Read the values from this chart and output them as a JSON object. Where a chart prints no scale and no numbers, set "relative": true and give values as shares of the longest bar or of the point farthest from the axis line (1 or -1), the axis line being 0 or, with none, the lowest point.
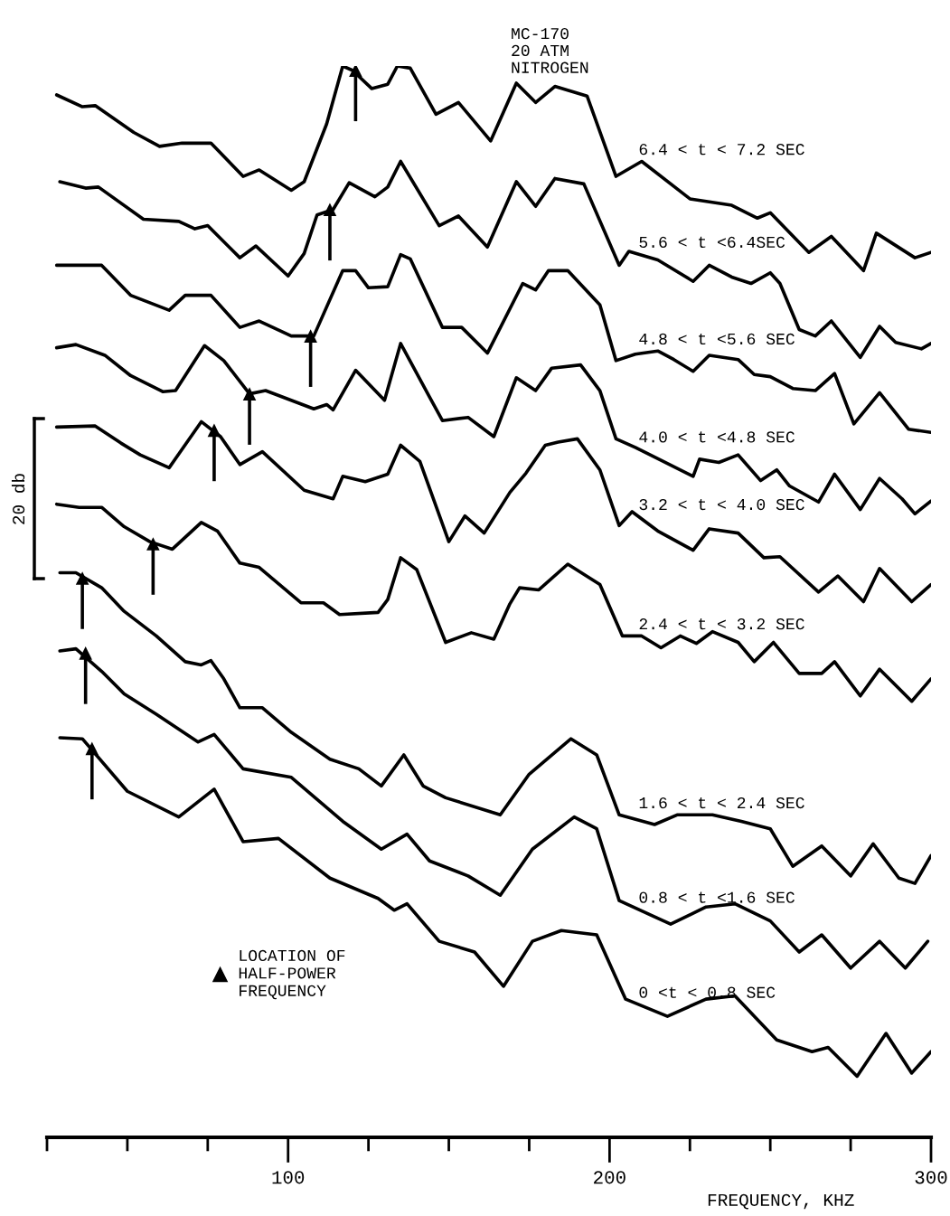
{
  "chart_data": {
    "type": "line",
    "title": "MC-170\n20 ATM\nNITROGEN",
    "xlabel": "FREQUENCY, KHZ",
    "relative": true,
    "tick_labels": "x",
    "legend": "bottom left",
    "annotations": [
      "20 db"
    ],
    "xlim": [
      25,
      300
    ],
    "xticks": [
      {
        "value": 25,
        "label": null
      },
      {
        "value": 50,
        "label": null
      },
      {
        "value": 75,
        "label": null
      },
      100,
      {
        "value": 125,
        "label": null
      },
      {
        "value": 150,
        "label": null
      },
      {
        "value": 175,
        "label": null
      },
      200,
      {
        "value": 225,
        "label": null
      },
      {
        "value": 250,
        "label": null
      },
      {
        "value": 275,
        "label": null
      },
      300
    ],
    "series": [
      {
        "name": "6.4 < t < 7.2 SEC",
        "color": "#000000",
        "x": [
          28,
          36,
          40,
          52,
          60,
          67,
          76,
          86,
          91,
          101,
          105,
          112,
          117,
          120,
          126,
          131,
          134,
          138,
          146,
          153,
          163,
          171,
          177,
          183,
          193,
          202,
          210,
          225,
          238,
          246,
          250,
          262,
          269,
          279,
          283,
          295,
          300
        ],
        "values": [
          0.973,
          0.962,
          0.963,
          0.938,
          0.925,
          0.928,
          0.928,
          0.897,
          0.903,
          0.884,
          0.892,
          0.946,
          1.0,
          0.996,
          0.979,
          0.983,
          1.0,
          0.998,
          0.955,
          0.966,
          0.93,
          0.984,
          0.966,
          0.981,
          0.972,
          0.897,
          0.911,
          0.876,
          0.87,
          0.858,
          0.863,
          0.826,
          0.841,
          0.809,
          0.844,
          0.821,
          0.826
        ]
      },
      {
        "name": "5.6 < t <6.4SEC",
        "color": "#000000",
        "x": [
          29,
          37,
          41,
          55,
          66,
          71,
          75,
          85,
          90,
          100,
          105,
          109,
          114,
          119,
          127,
          131,
          135,
          147,
          153,
          162,
          171,
          177,
          183,
          192,
          203,
          206,
          215,
          226,
          231,
          238,
          244,
          250,
          253,
          259,
          264,
          269,
          278,
          284,
          289,
          297,
          300
        ],
        "values": [
          0.892,
          0.886,
          0.887,
          0.857,
          0.855,
          0.848,
          0.851,
          0.821,
          0.832,
          0.804,
          0.825,
          0.861,
          0.866,
          0.891,
          0.878,
          0.887,
          0.911,
          0.851,
          0.86,
          0.831,
          0.892,
          0.869,
          0.895,
          0.89,
          0.814,
          0.827,
          0.819,
          0.799,
          0.814,
          0.803,
          0.797,
          0.807,
          0.797,
          0.754,
          0.748,
          0.762,
          0.728,
          0.757,
          0.742,
          0.736,
          0.741
        ]
      },
      {
        "name": "4.8 < t <5.6 SEC",
        "color": "#000000",
        "x": [
          28,
          42,
          51,
          63,
          68,
          76,
          85,
          91,
          101,
          108,
          117,
          121,
          125,
          131,
          135,
          138,
          148,
          154,
          162,
          173,
          177,
          181,
          187,
          197,
          202,
          208,
          215,
          220,
          226,
          231,
          240,
          245,
          250,
          257,
          264,
          270,
          276,
          284,
          293,
          300
        ],
        "values": [
          0.814,
          0.814,
          0.786,
          0.772,
          0.786,
          0.786,
          0.756,
          0.762,
          0.748,
          0.748,
          0.809,
          0.809,
          0.793,
          0.794,
          0.824,
          0.82,
          0.756,
          0.756,
          0.732,
          0.797,
          0.791,
          0.809,
          0.809,
          0.777,
          0.725,
          0.731,
          0.734,
          0.726,
          0.715,
          0.73,
          0.726,
          0.712,
          0.71,
          0.699,
          0.697,
          0.713,
          0.666,
          0.695,
          0.661,
          0.658
        ]
      },
      {
        "name": "4.0 < t <4.8 SEC",
        "color": "#000000",
        "x": [
          28,
          34,
          43,
          51,
          61,
          65,
          74,
          80,
          88,
          93,
          108,
          112,
          114,
          121,
          130,
          135,
          144,
          148,
          156,
          164,
          171,
          177,
          182,
          191,
          197,
          202,
          208,
          226,
          228,
          234,
          240,
          247,
          252,
          256,
          265,
          270,
          278,
          284,
          291,
          295,
          300
        ],
        "values": [
          0.737,
          0.74,
          0.73,
          0.711,
          0.696,
          0.697,
          0.739,
          0.725,
          0.694,
          0.697,
          0.68,
          0.684,
          0.679,
          0.716,
          0.688,
          0.741,
          0.691,
          0.669,
          0.672,
          0.654,
          0.709,
          0.697,
          0.718,
          0.721,
          0.697,
          0.652,
          0.644,
          0.617,
          0.633,
          0.63,
          0.637,
          0.613,
          0.623,
          0.608,
          0.593,
          0.619,
          0.586,
          0.615,
          0.596,
          0.582,
          0.594
        ]
      },
      {
        "name": "3.2 < t < 4.0 SEC",
        "color": "#000000",
        "x": [
          28,
          40,
          48,
          54,
          63,
          73,
          79,
          85,
          92,
          105,
          114,
          117,
          124,
          131,
          135,
          141,
          150,
          155,
          161,
          169,
          174,
          180,
          184,
          190,
          197,
          203,
          207,
          215,
          226,
          231,
          240,
          248,
          253,
          265,
          271,
          279,
          284,
          294,
          300
        ],
        "values": [
          0.663,
          0.664,
          0.648,
          0.637,
          0.625,
          0.668,
          0.654,
          0.628,
          0.64,
          0.604,
          0.596,
          0.617,
          0.612,
          0.619,
          0.646,
          0.631,
          0.556,
          0.58,
          0.564,
          0.602,
          0.62,
          0.646,
          0.649,
          0.652,
          0.623,
          0.571,
          0.584,
          0.566,
          0.548,
          0.568,
          0.564,
          0.541,
          0.542,
          0.509,
          0.524,
          0.5,
          0.531,
          0.5,
          0.516
        ]
      },
      {
        "name": "2.4 < t < 3.2 SEC",
        "color": "#000000",
        "x": [
          28,
          35,
          42,
          49,
          57,
          64,
          73,
          78,
          85,
          91,
          104,
          111,
          116,
          128,
          131,
          135,
          140,
          149,
          157,
          164,
          169,
          172,
          178,
          187,
          197,
          204,
          210,
          216,
          222,
          227,
          232,
          240,
          245,
          251,
          259,
          266,
          270,
          278,
          284,
          294,
          300
        ],
        "values": [
          0.591,
          0.588,
          0.588,
          0.57,
          0.556,
          0.549,
          0.574,
          0.566,
          0.536,
          0.532,
          0.499,
          0.499,
          0.488,
          0.49,
          0.502,
          0.541,
          0.53,
          0.462,
          0.471,
          0.465,
          0.498,
          0.513,
          0.511,
          0.535,
          0.516,
          0.468,
          0.468,
          0.457,
          0.468,
          0.461,
          0.472,
          0.462,
          0.444,
          0.462,
          0.433,
          0.433,
          0.444,
          0.412,
          0.437,
          0.407,
          0.428
        ]
      },
      {
        "name": "1.6 < t < 2.4 SEC",
        "color": "#000000",
        "x": [
          29,
          34,
          42,
          49,
          59,
          68,
          73,
          76,
          80,
          85,
          92,
          101,
          113,
          122,
          129,
          136,
          142,
          149,
          166,
          175,
          188,
          196,
          203,
          214,
          221,
          232,
          241,
          250,
          257,
          266,
          275,
          282,
          290,
          295,
          300
        ],
        "values": [
          0.527,
          0.527,
          0.513,
          0.491,
          0.468,
          0.444,
          0.441,
          0.445,
          0.428,
          0.401,
          0.401,
          0.378,
          0.353,
          0.344,
          0.328,
          0.357,
          0.328,
          0.317,
          0.301,
          0.339,
          0.372,
          0.357,
          0.301,
          0.292,
          0.301,
          0.301,
          0.295,
          0.288,
          0.253,
          0.272,
          0.244,
          0.274,
          0.242,
          0.237,
          0.263
        ]
      },
      {
        "name": "0.8 < t <1.6 SEC",
        "color": "#000000",
        "x": [
          29,
          34,
          42,
          49,
          59,
          72,
          77,
          86,
          101,
          117,
          129,
          137,
          144,
          156,
          166,
          176,
          189,
          196,
          203,
          219,
          230,
          239,
          250,
          259,
          266,
          275,
          284,
          292,
          299
        ],
        "values": [
          0.454,
          0.456,
          0.435,
          0.414,
          0.395,
          0.369,
          0.376,
          0.344,
          0.336,
          0.295,
          0.269,
          0.283,
          0.258,
          0.244,
          0.226,
          0.269,
          0.299,
          0.288,
          0.221,
          0.199,
          0.215,
          0.218,
          0.202,
          0.173,
          0.189,
          0.158,
          0.183,
          0.158,
          0.183
        ]
      },
      {
        "name": "0 <t < 0.8 SEC",
        "color": "#000000",
        "x": [
          29,
          36,
          50,
          66,
          77,
          86,
          97,
          113,
          128,
          133,
          137,
          147,
          158,
          167,
          176,
          185,
          196,
          205,
          218,
          230,
          239,
          252,
          263,
          268,
          277,
          286,
          294,
          300
        ],
        "values": [
          0.373,
          0.372,
          0.323,
          0.299,
          0.325,
          0.276,
          0.279,
          0.242,
          0.223,
          0.212,
          0.218,
          0.183,
          0.173,
          0.141,
          0.183,
          0.193,
          0.189,
          0.129,
          0.113,
          0.129,
          0.132,
          0.091,
          0.08,
          0.084,
          0.057,
          0.097,
          0.06,
          0.08
        ]
      },
      {
        "name": "LOCATION OF\nHALF-POWER\nFREQUENCY",
        "type": "scatter",
        "marker": "triangle",
        "color": "#000000",
        "x": [
          121,
          113,
          107,
          88,
          77,
          58,
          36,
          37,
          39
        ],
        "values": [
          0.996,
          0.866,
          0.748,
          0.694,
          0.66,
          0.554,
          0.522,
          0.452,
          0.363
        ]
      }
    ]
  }
}
